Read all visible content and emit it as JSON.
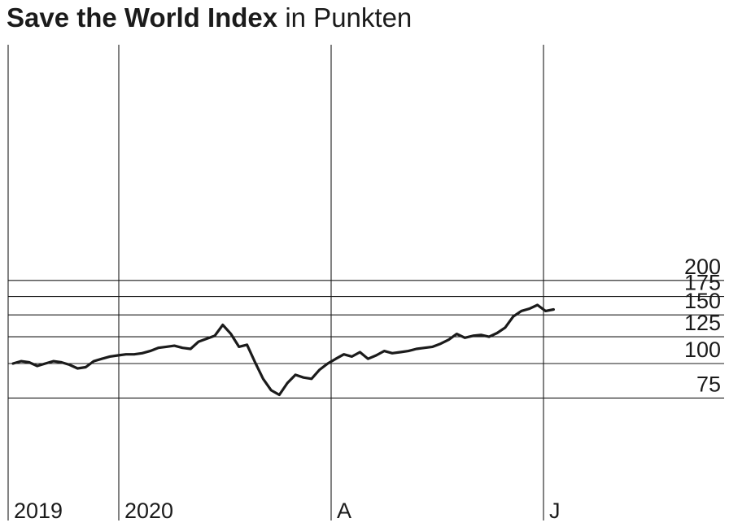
{
  "title": {
    "main": "Save the World Index",
    "unit": "in Punkten"
  },
  "chart_data": {
    "type": "line",
    "title": "Save the World Index",
    "subtitle": "in Punkten",
    "x_period_labels": [
      "2019",
      "2020",
      "A",
      "J"
    ],
    "y_ticks": [
      75,
      100,
      125,
      150,
      175,
      200
    ],
    "y_scale": "log",
    "ylim": [
      75,
      200
    ],
    "grid": true,
    "color": "#1b1b1b",
    "series": [
      {
        "x": [
          "2019-11-15",
          "2019-11-22",
          "2019-11-29",
          "2019-12-06",
          "2019-12-13",
          "2019-12-20",
          "2019-12-27",
          "2020-01-03",
          "2020-01-10",
          "2020-01-17",
          "2020-01-24",
          "2020-01-31",
          "2020-02-07",
          "2020-02-14",
          "2020-02-21",
          "2020-02-28",
          "2020-03-06",
          "2020-03-13",
          "2020-03-20",
          "2020-03-27",
          "2020-04-03",
          "2020-04-10",
          "2020-04-17",
          "2020-04-24",
          "2020-05-01",
          "2020-05-08",
          "2020-05-15",
          "2020-05-22",
          "2020-05-29",
          "2020-06-05",
          "2020-06-12",
          "2020-06-19",
          "2020-06-26",
          "2020-07-03",
          "2020-07-10",
          "2020-07-17",
          "2020-07-24",
          "2020-07-31",
          "2020-08-07",
          "2020-08-14",
          "2020-08-21",
          "2020-08-28",
          "2020-09-04",
          "2020-09-11",
          "2020-09-18",
          "2020-09-25",
          "2020-10-02",
          "2020-10-09",
          "2020-10-16",
          "2020-10-23",
          "2020-10-30",
          "2020-11-06",
          "2020-11-13",
          "2020-11-20",
          "2020-11-27",
          "2020-12-04",
          "2020-12-11",
          "2020-12-18",
          "2020-12-25",
          "2021-01-01",
          "2021-01-08",
          "2021-01-15",
          "2021-01-22",
          "2021-01-29",
          "2021-02-05",
          "2021-02-12",
          "2021-02-19",
          "2021-02-26"
        ],
        "values": [
          100,
          102,
          101,
          98,
          100,
          102,
          101,
          99,
          96,
          97,
          102,
          104,
          106,
          107,
          108,
          108,
          109,
          111,
          114,
          115,
          116,
          114,
          113,
          120,
          123,
          126,
          138,
          128,
          115,
          117,
          101,
          88,
          80,
          77,
          85,
          91,
          89,
          88,
          95,
          100,
          104,
          108,
          106,
          110,
          104,
          107,
          111,
          109,
          110,
          111,
          113,
          114,
          115,
          118,
          122,
          128,
          124,
          126,
          127,
          125,
          129,
          135,
          148,
          155,
          158,
          163,
          155,
          157
        ]
      }
    ]
  }
}
